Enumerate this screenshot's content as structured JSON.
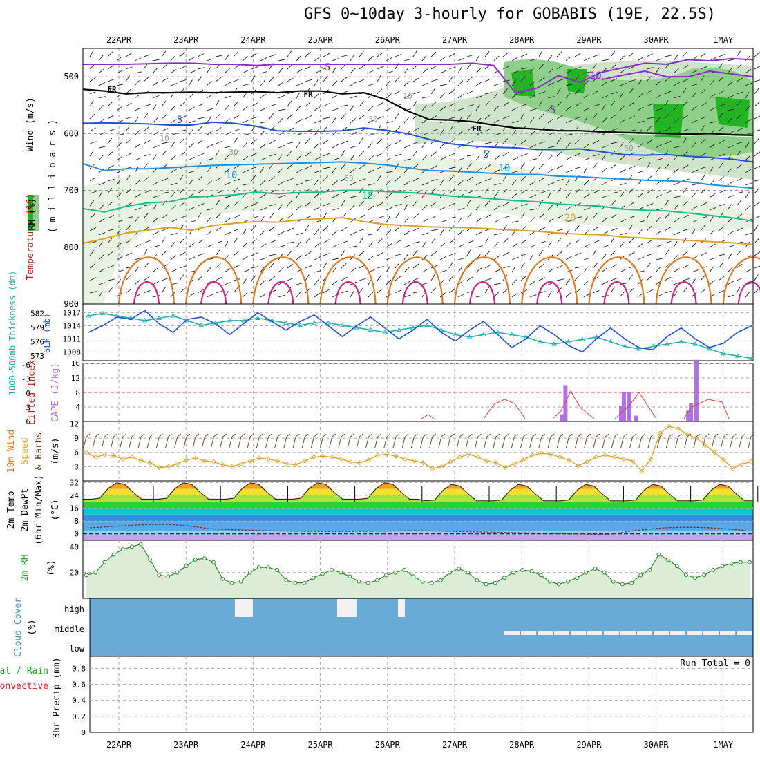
{
  "title": "GFS 0~10day 3-hourly for GOBABIS (19E, 22.5S)",
  "dates": [
    "22APR",
    "23APR",
    "24APR",
    "25APR",
    "26APR",
    "27APR",
    "28APR",
    "29APR",
    "30APR",
    "1MAY"
  ],
  "colors": {
    "purple": "#8a2bc4",
    "blue": "#1f4fd6",
    "lightblue": "#1e90e0",
    "teal": "#1abc8c",
    "orange": "#e0a020",
    "darkorange": "#e07820",
    "magenta": "#d0208a",
    "green": "#22b422",
    "cloud": "#6aaad6"
  },
  "labels": {
    "p1_wind": "Wind (m/s)",
    "p1_temp": "Temperature (°C)",
    "p1_rh": "RH (%)",
    "p1_mb": "( m i l l i b a r s )",
    "p2_thk": "1000~500mb Thickness (dm)",
    "p2_slp": "SLP (mb)",
    "p3_li": "Lifted Index",
    "p3_cape": "CAPE (J/kg)",
    "p4_a": "10m Wind",
    "p4_b": "Speed",
    "p4_c": "& Barbs",
    "p4_unit": "(m/s)",
    "p5_a": "2m Temp",
    "p5_b": "2m DewPt",
    "p5_c": "(6hr Min/Max)",
    "p5_unit": "(°C)",
    "p6_a": "2m RH",
    "p6_unit": "(%)",
    "p7_a": "Cloud Cover",
    "p7_unit": "(%)",
    "p8_a": "Total / Rain",
    "p8_b": "Convective",
    "p8_c": "3hr Precip (mm)",
    "run_total": "Run Total = 0",
    "fr": "FR"
  },
  "contour_labels": [
    "-5",
    "-10",
    "-5",
    "5",
    "5",
    "10",
    "10",
    "15",
    "20",
    "FR",
    "FR",
    "FR",
    "10",
    "10",
    "30",
    "30",
    "50",
    "50"
  ],
  "chart_data": [
    {
      "type": "line",
      "title": "Wind / Temperature / RH",
      "ylabel": "millibars",
      "ylim": [
        900,
        450
      ],
      "yticks": [
        500,
        600,
        700,
        800,
        900
      ],
      "series": [
        {
          "name": "-5 isotherm",
          "values": [
            478,
            478,
            478,
            477,
            476,
            476,
            478,
            478,
            480,
            478,
            478,
            478,
            478,
            478,
            478,
            478,
            478,
            478,
            476,
            480,
            528,
            520,
            498,
            510,
            492,
            484,
            476,
            478,
            470,
            472,
            468,
            470
          ]
        },
        {
          "name": "-10 isotherm",
          "values": [
            null,
            null,
            null,
            null,
            null,
            null,
            null,
            null,
            null,
            null,
            null,
            null,
            null,
            null,
            null,
            null,
            null,
            null,
            null,
            null,
            null,
            null,
            null,
            null,
            505,
            497,
            490,
            500,
            500,
            490,
            495,
            500
          ]
        },
        {
          "name": "FR",
          "values": [
            522,
            525,
            530,
            528,
            528,
            527,
            528,
            527,
            526,
            528,
            525,
            525,
            530,
            528,
            540,
            560,
            575,
            576,
            579,
            585,
            590,
            592,
            595,
            595,
            597,
            598,
            599,
            600,
            601,
            600,
            602,
            603
          ]
        },
        {
          "name": "5 isotherm",
          "values": [
            582,
            581,
            582,
            583,
            585,
            585,
            580,
            582,
            587,
            595,
            596,
            596,
            595,
            590,
            594,
            600,
            610,
            618,
            622,
            624,
            625,
            628,
            628,
            627,
            632,
            637,
            638,
            637,
            640,
            642,
            645,
            650
          ]
        },
        {
          "name": "10 isotherm",
          "values": [
            653,
            665,
            662,
            662,
            660,
            658,
            656,
            655,
            654,
            653,
            652,
            651,
            650,
            652,
            655,
            660,
            665,
            666,
            668,
            670,
            672,
            672,
            675,
            676,
            678,
            680,
            682,
            683,
            685,
            690,
            693,
            696
          ]
        },
        {
          "name": "15 isotherm",
          "values": [
            732,
            738,
            728,
            722,
            720,
            712,
            710,
            708,
            703,
            706,
            704,
            703,
            700,
            700,
            702,
            704,
            706,
            710,
            712,
            715,
            718,
            720,
            724,
            726,
            728,
            733,
            735,
            736,
            740,
            744,
            748,
            754
          ]
        },
        {
          "name": "20 isotherm",
          "values": [
            793,
            785,
            775,
            770,
            765,
            770,
            762,
            758,
            755,
            756,
            752,
            750,
            748,
            755,
            760,
            762,
            764,
            765,
            766,
            768,
            770,
            772,
            775,
            777,
            778,
            782,
            784,
            786,
            788,
            790,
            792,
            795
          ]
        }
      ]
    },
    {
      "type": "line",
      "title": "SLP / Thickness",
      "series": [
        {
          "name": "SLP (mb)",
          "values": [
            1012.5,
            1014,
            1016,
            1015.5,
            1017.5,
            1014.5,
            1012.5,
            1015.5,
            1016,
            1014.5,
            1012,
            1014.5,
            1017,
            1015,
            1013,
            1015,
            1016.5,
            1014,
            1011.5,
            1014,
            1016,
            1013.5,
            1011,
            1013,
            1015.5,
            1012.5,
            1010.5,
            1013,
            1015,
            1012,
            1009,
            1011,
            1014,
            1012,
            1009.5,
            1008,
            1011,
            1013.5,
            1011,
            1009,
            1008.5,
            1011.5,
            1013.5,
            1011,
            1009,
            1010,
            1012.5,
            1014
          ]
        },
        {
          "name": "1000~500mb Thickness (dm)",
          "values": [
            581.5,
            582,
            581.5,
            581,
            580.5,
            581,
            581.5,
            580.5,
            579.5,
            580,
            580.5,
            580.5,
            581,
            580.5,
            580,
            579.5,
            580,
            580,
            579.5,
            579,
            578.5,
            578,
            578.5,
            579,
            579.5,
            578.5,
            577.5,
            577,
            577.5,
            578,
            577.5,
            577,
            576,
            575.5,
            576,
            576.5,
            577,
            576,
            575,
            574.5,
            575,
            575.5,
            576,
            575.5,
            574.5,
            573.5,
            573,
            572.5
          ]
        }
      ],
      "ylim_slp": [
        1006,
        1019
      ],
      "ylim_thk": [
        572,
        584
      ]
    },
    {
      "type": "bar",
      "title": "Lifted Index / CAPE",
      "cape_x": [
        6.6,
        6.65,
        7.48,
        7.52,
        7.6,
        7.7,
        8.48,
        8.52,
        8.6
      ],
      "cape_values": [
        2,
        10,
        4.2,
        8,
        8,
        1.6,
        3,
        5,
        17
      ],
      "ylim_cape": [
        0,
        16
      ],
      "ylim_li": [
        6,
        -6
      ]
    },
    {
      "type": "line",
      "title": "10m Wind Speed",
      "ylim": [
        0,
        12
      ],
      "series": [
        {
          "name": "10m Wind Speed",
          "values": [
            6,
            5,
            5.5,
            5.3,
            4.6,
            5,
            4.3,
            3.8,
            2.8,
            3,
            3.6,
            4.4,
            4.8,
            4.2,
            4,
            3.4,
            3,
            3.6,
            4.2,
            4.8,
            4.6,
            4.2,
            3.6,
            3.4,
            4.2,
            5,
            5.2,
            5,
            4.6,
            4,
            3.8,
            4.4,
            5.4,
            5.6,
            5.2,
            4.6,
            4.2,
            3.8,
            2.6,
            3,
            4,
            5,
            5.6,
            5,
            4.2,
            3.8,
            2.8,
            3.6,
            4.4,
            5.4,
            5.8,
            5.6,
            5,
            4.4,
            3.2,
            4,
            5,
            5.4,
            5,
            4.6,
            4.2,
            2,
            4.6,
            10,
            11.5,
            11,
            9.8,
            9,
            7.5,
            6,
            4.4,
            2.6,
            3.6,
            4
          ]
        }
      ]
    },
    {
      "type": "area",
      "title": "2m Temp / DewPt",
      "ylim": [
        -4,
        33
      ],
      "yticks": [
        0,
        8,
        16,
        24,
        32
      ]
    },
    {
      "type": "area",
      "title": "2m RH",
      "ylim": [
        0,
        45
      ],
      "yticks": [
        20,
        40
      ],
      "series": [
        {
          "name": "2m RH",
          "values": [
            18,
            20,
            28,
            34,
            38,
            40,
            42,
            30,
            18,
            17,
            20,
            25,
            30,
            31,
            28,
            15,
            12,
            13,
            20,
            24,
            24,
            22,
            14,
            12,
            12,
            16,
            19,
            22,
            20,
            17,
            13,
            12,
            14,
            18,
            20,
            22,
            17,
            13,
            12,
            14,
            20,
            23,
            20,
            14,
            11,
            12,
            16,
            20,
            22,
            21,
            18,
            13,
            11,
            13,
            16,
            20,
            23,
            20,
            13,
            11,
            12,
            18,
            22,
            34,
            30,
            25,
            18,
            16,
            18,
            22,
            25,
            27,
            28,
            28
          ]
        }
      ]
    },
    {
      "type": "bar",
      "title": "Cloud Cover",
      "categories": [
        "high",
        "middle",
        "low"
      ]
    },
    {
      "type": "bar",
      "title": "3hr Precip",
      "ylim": [
        0,
        0.95
      ],
      "yticks": [
        0,
        0.2,
        0.4,
        0.6,
        0.8
      ]
    }
  ]
}
